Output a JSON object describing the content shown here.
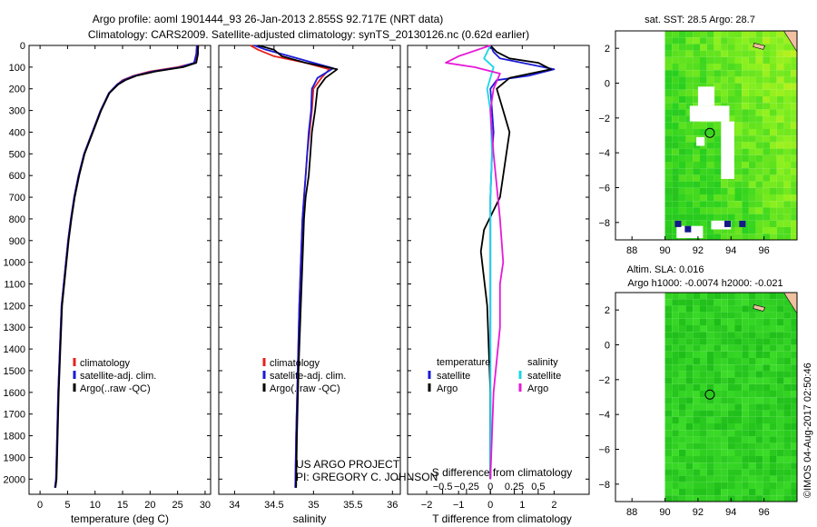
{
  "title_line1": "Argo profile: aoml 1901444_93 26-Jan-2013 2.855S 92.717E (NRT data)",
  "title_line2": "Climatology: CARS2009. Satellite-adjusted climatology: synTS_20130126.nc (0.62d earlier)",
  "colors": {
    "climatology": "#e8201a",
    "satellite": "#1a1ad8",
    "argo": "#000000",
    "sat_s": "#19d6e6",
    "argo_s": "#e619d6",
    "ocean": "#2ec82e",
    "land": "#f0c0a0"
  },
  "depth_axis": {
    "ticks": [
      0,
      100,
      200,
      300,
      400,
      500,
      600,
      700,
      800,
      900,
      1000,
      1100,
      1200,
      1300,
      1400,
      1500,
      1600,
      1700,
      1800,
      1900,
      2000
    ],
    "labels": [
      "0",
      "100",
      "200",
      "300",
      "400",
      "500",
      "600",
      "700",
      "800",
      "900",
      "1000",
      "1100",
      "1200",
      "1300",
      "1400",
      "1500",
      "1600",
      "1700",
      "1800",
      "1900",
      "2000"
    ]
  },
  "chart_data": [
    {
      "type": "line",
      "id": "temperature",
      "xlabel": "temperature (deg C)",
      "ylabel": "",
      "xlim": [
        -2,
        31
      ],
      "ylim": [
        2070,
        0
      ],
      "xticks": [
        0,
        5,
        10,
        15,
        20,
        25,
        30
      ],
      "xtick_labels": [
        "0",
        "5",
        "10",
        "15",
        "20",
        "25",
        "30"
      ],
      "legend": [
        "climatology",
        "satellite-adj. clim.",
        "Argo(..raw -QC)"
      ],
      "series": [
        {
          "name": "climatology",
          "color": "#e8201a",
          "x": [
            28.8,
            28.6,
            28.2,
            25,
            20,
            17,
            15,
            14,
            12.5,
            11,
            9.5,
            8,
            7,
            6.2,
            5.6,
            5.1,
            4.7,
            4.3,
            3.9,
            3.6,
            3.3,
            3.1,
            2.9,
            2.7
          ],
          "y": [
            0,
            40,
            80,
            100,
            120,
            140,
            160,
            180,
            220,
            300,
            400,
            500,
            600,
            700,
            800,
            900,
            1000,
            1100,
            1200,
            1400,
            1600,
            1800,
            2000,
            2040
          ]
        },
        {
          "name": "satellite-adj. clim.",
          "color": "#1a1ad8",
          "x": [
            28.5,
            28.4,
            28.0,
            25.5,
            20.5,
            17.2,
            15.2,
            14,
            12.5,
            11,
            9.5,
            8,
            7,
            6.2,
            5.6,
            5.1,
            4.7,
            4.3,
            3.9,
            3.6,
            3.3,
            3.1,
            2.9,
            2.7
          ],
          "y": [
            0,
            40,
            80,
            100,
            120,
            140,
            160,
            180,
            220,
            300,
            400,
            500,
            600,
            700,
            800,
            900,
            1000,
            1100,
            1200,
            1400,
            1600,
            1800,
            2000,
            2040
          ]
        },
        {
          "name": "Argo(..raw -QC)",
          "color": "#000000",
          "x": [
            28.7,
            28.7,
            28.4,
            26,
            21,
            17.5,
            15.5,
            14.2,
            12.6,
            11.1,
            9.6,
            8.1,
            7.1,
            6.3,
            5.7,
            5.2,
            4.8,
            4.4,
            4.0,
            3.7,
            3.4,
            3.2,
            3.0,
            2.8
          ],
          "y": [
            0,
            40,
            80,
            100,
            120,
            140,
            160,
            180,
            220,
            300,
            400,
            500,
            600,
            700,
            800,
            900,
            1000,
            1100,
            1200,
            1400,
            1600,
            1800,
            2000,
            2040
          ]
        }
      ]
    },
    {
      "type": "line",
      "id": "salinity",
      "xlabel": "salinity",
      "ylabel": "",
      "xlim": [
        33.8,
        36.1
      ],
      "ylim": [
        2070,
        0
      ],
      "xticks": [
        34,
        34.5,
        35,
        35.5,
        36
      ],
      "xtick_labels": [
        "34",
        "34.5",
        "35",
        "35.5",
        "36"
      ],
      "legend": [
        "climatology",
        "satellite-adj. clim.",
        "Argo(..raw -QC)"
      ],
      "series": [
        {
          "name": "climatology",
          "color": "#e8201a",
          "x": [
            34.2,
            34.3,
            34.5,
            34.9,
            35.2,
            35.1,
            35.0,
            34.98,
            34.95,
            34.92,
            34.9,
            34.88,
            34.86,
            34.84,
            34.82,
            34.8,
            34.78,
            34.77
          ],
          "y": [
            0,
            20,
            50,
            80,
            110,
            150,
            200,
            300,
            400,
            500,
            600,
            700,
            800,
            1000,
            1200,
            1500,
            1800,
            2040
          ]
        },
        {
          "name": "satellite-adj. clim.",
          "color": "#1a1ad8",
          "x": [
            34.25,
            34.4,
            34.7,
            35.0,
            35.25,
            35.05,
            34.98,
            34.97,
            34.94,
            34.92,
            34.9,
            34.88,
            34.86,
            34.84,
            34.82,
            34.8,
            34.78,
            34.77
          ],
          "y": [
            0,
            20,
            50,
            80,
            105,
            150,
            200,
            300,
            400,
            500,
            600,
            700,
            800,
            1000,
            1200,
            1500,
            1800,
            2040
          ]
        },
        {
          "name": "Argo(..raw -QC)",
          "color": "#000000",
          "x": [
            34.3,
            34.5,
            34.6,
            34.9,
            35.3,
            35.15,
            35.05,
            35.02,
            34.98,
            34.96,
            34.94,
            34.9,
            34.88,
            34.86,
            34.84,
            34.81,
            34.79,
            34.78
          ],
          "y": [
            0,
            20,
            50,
            80,
            110,
            150,
            200,
            300,
            400,
            500,
            600,
            700,
            800,
            1000,
            1200,
            1500,
            1800,
            2040
          ]
        }
      ]
    },
    {
      "type": "line",
      "id": "differences",
      "xlabel": "T difference from climatology",
      "xlabel_top": "S difference from climatology",
      "xlim": [
        -2.6,
        3.1
      ],
      "ylim": [
        2070,
        0
      ],
      "xticks": [
        -2,
        -1,
        0,
        1,
        2
      ],
      "xtick_labels": [
        "−2",
        "−1",
        "0",
        "1",
        "2"
      ],
      "top_ticks": [
        -1.5,
        -0.75,
        0,
        0.75,
        1.5
      ],
      "top_tick_labels": [
        "−0.5",
        "−0.25",
        "0",
        "0.25",
        "0.5"
      ],
      "legend_temperature_title": "temperature",
      "legend_salinity_title": "salinity",
      "legend": [
        "satellite",
        "Argo",
        "satellite",
        "Argo"
      ],
      "series": [
        {
          "name": "T satellite",
          "color": "#1a1ad8",
          "x": [
            0,
            0.1,
            0.3,
            1.0,
            2.0,
            1.2,
            0.2,
            0.0,
            0.05,
            0.1,
            0.05,
            0.0,
            0.0,
            0.0,
            0.0,
            0.0
          ],
          "y": [
            0,
            30,
            60,
            80,
            110,
            140,
            160,
            200,
            300,
            400,
            500,
            700,
            900,
            1200,
            1600,
            2000
          ]
        },
        {
          "name": "T Argo",
          "color": "#000000",
          "x": [
            0,
            0.2,
            0.6,
            1.5,
            1.9,
            0.6,
            0.2,
            0.4,
            0.6,
            0.5,
            0.3,
            -0.2,
            -0.3,
            -0.1,
            0.0,
            0.0
          ],
          "y": [
            0,
            30,
            60,
            80,
            110,
            150,
            200,
            300,
            400,
            500,
            700,
            850,
            950,
            1200,
            1600,
            2000
          ]
        },
        {
          "name": "S satellite",
          "color": "#19d6e6",
          "x": [
            0,
            -0.1,
            -0.2,
            0.1,
            0.0,
            -0.1,
            0.0,
            0.05,
            0.0,
            0.0,
            0.0,
            0.0,
            0.0
          ],
          "y": [
            0,
            30,
            60,
            100,
            150,
            200,
            300,
            500,
            700,
            900,
            1200,
            1600,
            2000
          ]
        },
        {
          "name": "S Argo",
          "color": "#e619d6",
          "x": [
            0,
            -1.0,
            -1.4,
            -0.5,
            0.3,
            0.1,
            0.0,
            0.1,
            0.3,
            0.4,
            0.3,
            0.3,
            0.1,
            0.0
          ],
          "y": [
            0,
            50,
            80,
            100,
            130,
            200,
            300,
            500,
            800,
            1000,
            1100,
            1300,
            1600,
            2000
          ]
        }
      ]
    },
    {
      "type": "heatmap",
      "id": "sst_map",
      "title": "sat. SST: 28.5 Argo: 28.7",
      "xlim": [
        87,
        98
      ],
      "ylim": [
        -9,
        3
      ],
      "xticks": [
        88,
        90,
        92,
        94,
        96
      ],
      "xtick_labels": [
        "88",
        "90",
        "92",
        "94",
        "96"
      ],
      "yticks": [
        -8,
        -6,
        -4,
        -2,
        0,
        2
      ],
      "ytick_labels": [
        "−8",
        "−6",
        "−4",
        "−2",
        "0",
        "2"
      ],
      "float_lon": 92.717,
      "float_lat": -2.855
    },
    {
      "type": "heatmap",
      "id": "sla_map",
      "title_line1": "Altim. SLA: 0.016",
      "title_line2": "Argo h1000: -0.0074 h2000: -0.021",
      "xlim": [
        87,
        98
      ],
      "ylim": [
        -9,
        3
      ],
      "xticks": [
        88,
        90,
        92,
        94,
        96
      ],
      "xtick_labels": [
        "88",
        "90",
        "92",
        "94",
        "96"
      ],
      "yticks": [
        -8,
        -6,
        -4,
        -2,
        0,
        2
      ],
      "ytick_labels": [
        "−8",
        "−6",
        "−4",
        "−2",
        "0",
        "2"
      ],
      "float_lon": 92.717,
      "float_lat": -2.855
    }
  ],
  "project_line1": "US ARGO PROJECT",
  "project_line2": "PI: GREGORY C. JOHNSON",
  "stamp": "©IMOS 04-Aug-2017 02:50:46"
}
